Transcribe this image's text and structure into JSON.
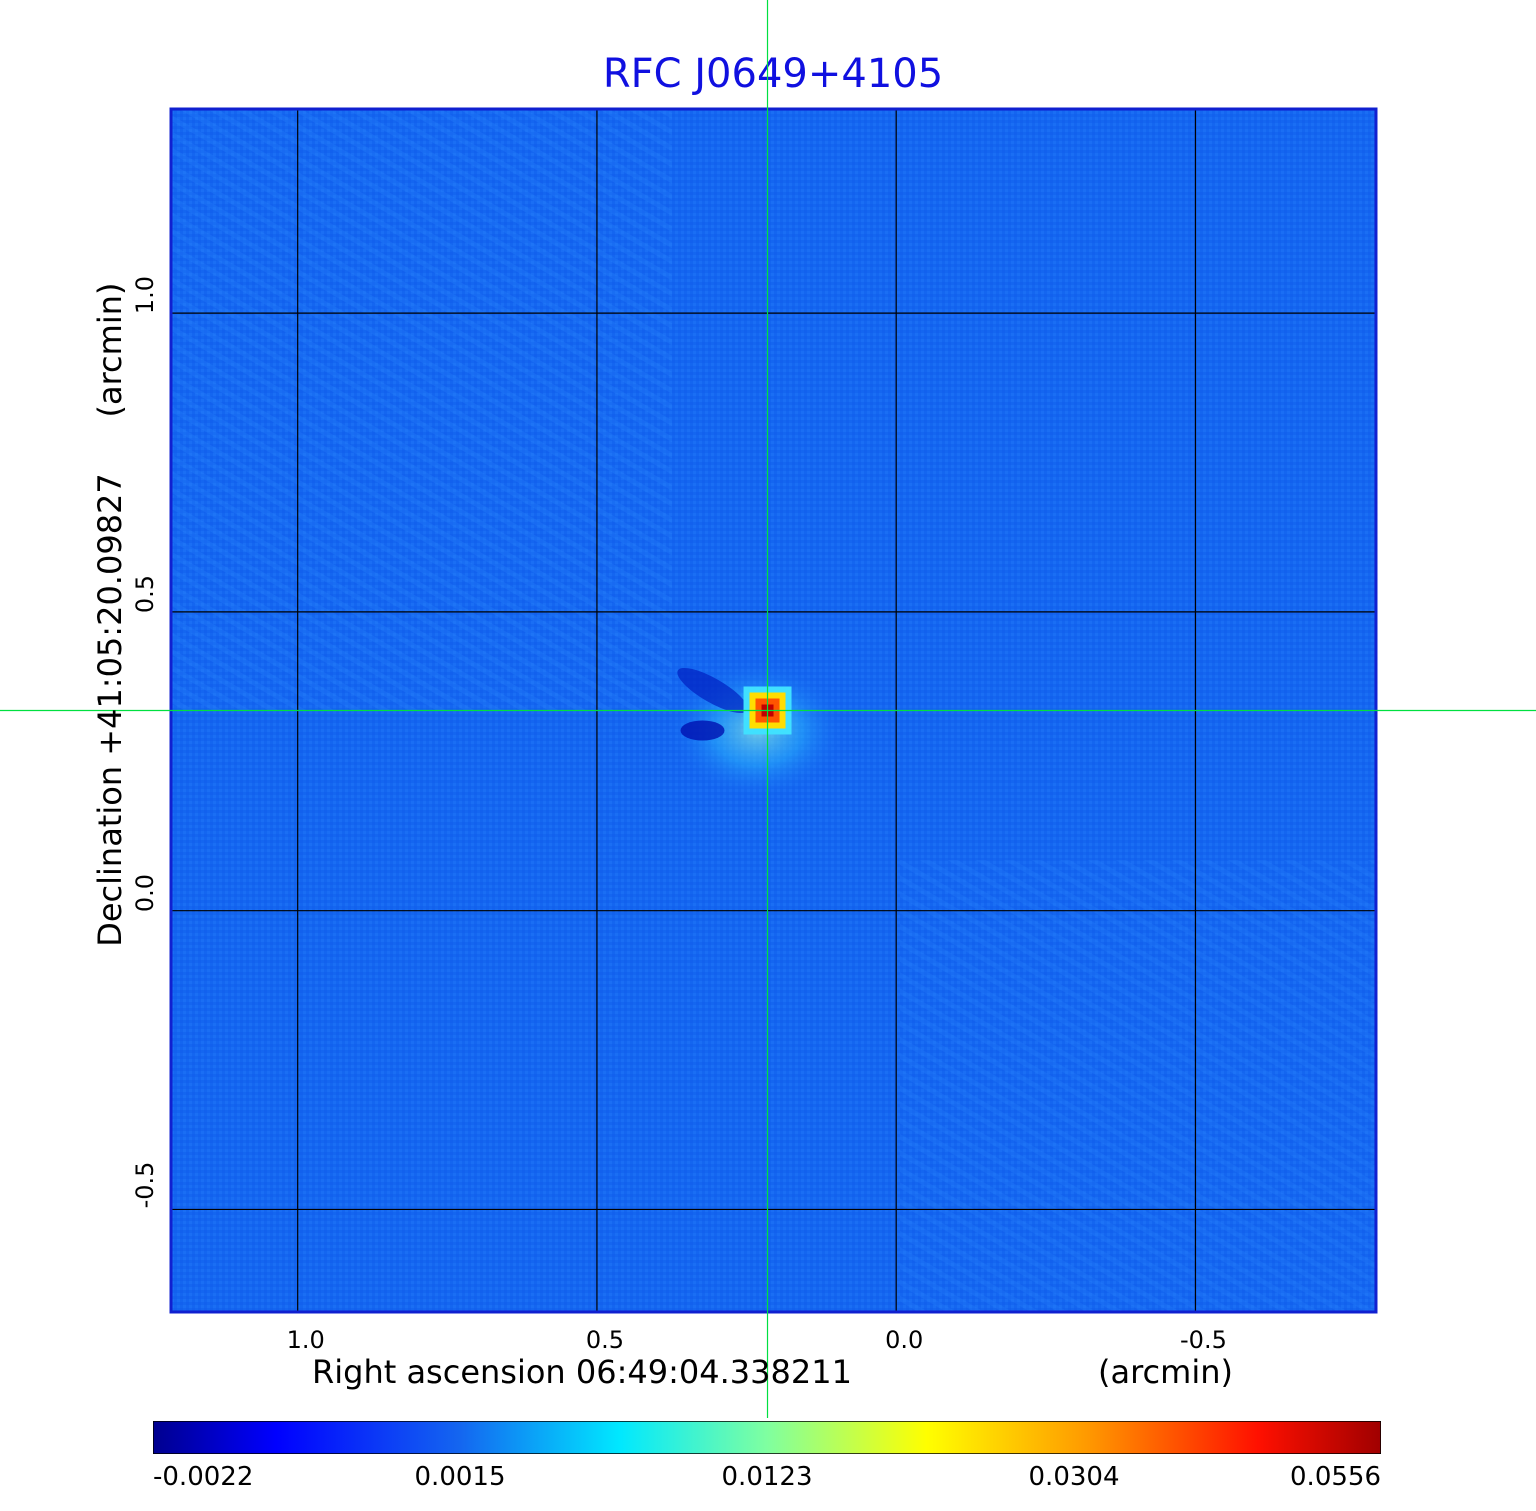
{
  "chart_data": {
    "type": "heatmap",
    "title": "RFC J0649+4105",
    "xlabel": "Right ascension  06:49:04.338211",
    "x_unit": "(arcmin)",
    "ylabel": "Declination  +41:05:20.09827",
    "y_unit": "(arcmin)",
    "xlim": [
      1.21,
      -0.8
    ],
    "ylim": [
      -0.67,
      1.34
    ],
    "x_ticks": [
      {
        "value": 1.0,
        "label": "1.0"
      },
      {
        "value": 0.5,
        "label": "0.5"
      },
      {
        "value": 0.0,
        "label": "0.0"
      },
      {
        "value": -0.5,
        "label": "-0.5"
      }
    ],
    "y_ticks": [
      {
        "value": 1.0,
        "label": "1.0"
      },
      {
        "value": 0.5,
        "label": "0.5"
      },
      {
        "value": 0.0,
        "label": "0.0"
      },
      {
        "value": -0.5,
        "label": "-0.5"
      }
    ],
    "grid": true,
    "crosshair": {
      "x": 0.215,
      "y": 0.335
    },
    "peak": {
      "x": 0.215,
      "y": 0.335,
      "value": 0.0556
    },
    "colormap": "jet",
    "colorbar": {
      "min": -0.0022,
      "max": 0.0556,
      "scale": "nonlinear",
      "ticks": [
        {
          "fraction": 0.0,
          "label": "-0.0022"
        },
        {
          "fraction": 0.25,
          "label": "0.0015"
        },
        {
          "fraction": 0.5,
          "label": "0.0123"
        },
        {
          "fraction": 0.75,
          "label": "0.0304"
        },
        {
          "fraction": 1.0,
          "label": "0.0556"
        }
      ]
    }
  },
  "colors": {
    "frame": "#1020d0",
    "background_field": "#1466f0",
    "grid": "#000000",
    "crosshair": "#00e040",
    "title": "#1010e0"
  }
}
